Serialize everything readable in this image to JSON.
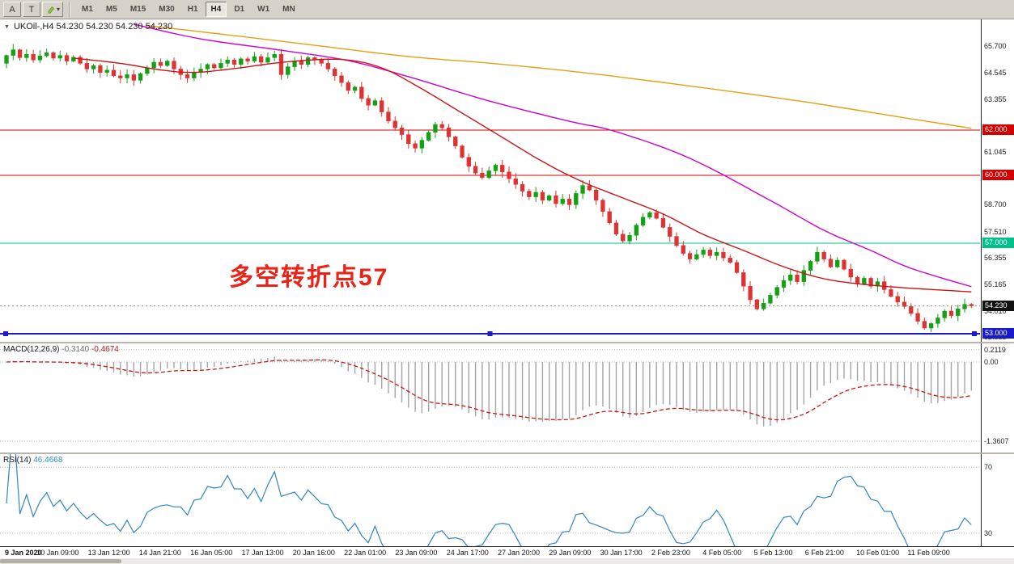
{
  "toolbar": {
    "tool_a": "A",
    "tool_t": "T",
    "timeframes": [
      "M1",
      "M5",
      "M15",
      "M30",
      "H1",
      "H4",
      "D1",
      "W1",
      "MN"
    ],
    "active_timeframe": "H4"
  },
  "chart": {
    "title": "UKOil-,H4 54.230 54.230 54.230 54.230",
    "annotation": "多空转折点57"
  },
  "macd": {
    "label": "MACD(12,26,9)",
    "value_main": "-0.3140",
    "value_signal": "-0.4674"
  },
  "rsi": {
    "label": "RSI(14)",
    "value": "46.4668"
  },
  "chart_data": {
    "type": "candlestick",
    "symbol": "UKOil-",
    "timeframe": "H4",
    "current_price": 54.23,
    "price_axis": {
      "range": [
        52.643,
        66.893
      ],
      "labels": [
        {
          "label": "65.700",
          "price": 65.7
        },
        {
          "label": "64.545",
          "price": 64.545
        },
        {
          "label": "63.355",
          "price": 63.355
        },
        {
          "label": "61.045",
          "price": 61.045
        },
        {
          "label": "58.700",
          "price": 58.7
        },
        {
          "label": "57.510",
          "price": 57.51
        },
        {
          "label": "56.355",
          "price": 56.355
        },
        {
          "label": "55.165",
          "price": 55.165
        },
        {
          "label": "54.010",
          "price": 54.01
        },
        {
          "label": "52.855",
          "price": 52.855
        }
      ],
      "badges": [
        {
          "label": "62.000",
          "price": 62.0,
          "color": "#d40000"
        },
        {
          "label": "60.000",
          "price": 60.0,
          "color": "#d40000"
        },
        {
          "label": "57.000",
          "price": 57.0,
          "color": "#00c08a"
        },
        {
          "label": "54.230",
          "price": 54.23,
          "color": "#111111",
          "current": true
        },
        {
          "label": "53.000",
          "price": 53.0,
          "color": "#1a1acd"
        }
      ]
    },
    "hlines": [
      {
        "price": 62.0,
        "color": "#d40000",
        "width": 1
      },
      {
        "price": 60.0,
        "color": "#d40000",
        "width": 1
      },
      {
        "price": 57.0,
        "color": "#00c08a",
        "width": 1
      },
      {
        "price": 53.0,
        "color": "#1a1acd",
        "width": 2,
        "selected": true
      }
    ],
    "first_open": 64.95,
    "closes": [
      65.3,
      65.55,
      65.2,
      65.35,
      65.1,
      65.28,
      65.42,
      65.18,
      65.3,
      65.05,
      65.22,
      64.95,
      64.7,
      64.85,
      64.55,
      64.65,
      64.4,
      64.3,
      64.45,
      64.2,
      64.5,
      64.75,
      65.0,
      64.85,
      65.05,
      64.7,
      64.45,
      64.3,
      64.55,
      64.7,
      64.9,
      64.75,
      64.95,
      65.1,
      64.9,
      65.15,
      65.05,
      65.25,
      65.0,
      65.2,
      65.35,
      64.45,
      64.8,
      65.05,
      64.9,
      65.2,
      65.1,
      64.95,
      64.7,
      64.4,
      64.1,
      63.75,
      63.9,
      63.4,
      63.1,
      63.3,
      62.8,
      62.4,
      62.1,
      61.8,
      61.4,
      61.2,
      61.55,
      61.9,
      62.25,
      62.1,
      61.7,
      61.3,
      60.8,
      60.4,
      60.1,
      59.9,
      60.2,
      60.45,
      60.15,
      59.85,
      59.6,
      59.3,
      59.05,
      59.25,
      58.9,
      59.1,
      58.75,
      58.95,
      58.7,
      59.2,
      59.55,
      59.35,
      58.9,
      58.4,
      57.9,
      57.4,
      57.1,
      57.35,
      57.8,
      58.15,
      58.35,
      58.1,
      57.7,
      57.3,
      56.9,
      56.55,
      56.3,
      56.5,
      56.7,
      56.45,
      56.6,
      56.35,
      56.15,
      55.7,
      55.1,
      54.5,
      54.1,
      54.35,
      54.7,
      55.05,
      55.35,
      55.6,
      55.3,
      55.8,
      56.2,
      56.6,
      56.3,
      55.95,
      56.25,
      55.85,
      55.5,
      55.2,
      55.45,
      55.1,
      55.3,
      54.95,
      54.65,
      54.4,
      54.2,
      53.9,
      53.55,
      53.25,
      53.45,
      53.7,
      54.0,
      53.8,
      54.1,
      54.3,
      54.23
    ],
    "ma": [
      {
        "name": "slow-orange",
        "color": "#e2a112",
        "points": [
          [
            21,
            66.62
          ],
          [
            35,
            66.14
          ],
          [
            47,
            65.71
          ],
          [
            60,
            65.25
          ],
          [
            72,
            64.96
          ],
          [
            84,
            64.61
          ],
          [
            96,
            64.18
          ],
          [
            108,
            63.71
          ],
          [
            120,
            63.21
          ],
          [
            132,
            62.64
          ],
          [
            144,
            62.08
          ]
        ]
      },
      {
        "name": "mid-magenta",
        "color": "#cc00cc",
        "points": [
          [
            19,
            66.68
          ],
          [
            29,
            66.03
          ],
          [
            41,
            65.53
          ],
          [
            51,
            65.07
          ],
          [
            60,
            64.36
          ],
          [
            72,
            63.29
          ],
          [
            84,
            62.39
          ],
          [
            91,
            61.93
          ],
          [
            102,
            60.75
          ],
          [
            114,
            58.89
          ],
          [
            122,
            57.57
          ],
          [
            129,
            56.68
          ],
          [
            135,
            55.89
          ],
          [
            144,
            55.08
          ]
        ]
      },
      {
        "name": "fast-red",
        "color": "#cc1414",
        "points": [
          [
            10,
            65.18
          ],
          [
            17,
            64.95
          ],
          [
            23,
            64.66
          ],
          [
            28,
            64.55
          ],
          [
            34,
            64.72
          ],
          [
            42,
            65.02
          ],
          [
            50,
            65.12
          ],
          [
            56,
            64.75
          ],
          [
            62,
            63.82
          ],
          [
            68,
            62.75
          ],
          [
            74,
            61.68
          ],
          [
            80,
            60.61
          ],
          [
            86,
            59.71
          ],
          [
            92,
            59.0
          ],
          [
            98,
            58.29
          ],
          [
            104,
            57.39
          ],
          [
            110,
            56.68
          ],
          [
            116,
            55.96
          ],
          [
            122,
            55.43
          ],
          [
            128,
            55.18
          ],
          [
            134,
            55.03
          ],
          [
            144,
            54.85
          ]
        ]
      }
    ],
    "macd_panel": {
      "range": [
        -1.556,
        0.319
      ],
      "levels": [
        {
          "label": "0.2119",
          "value": 0.2119
        },
        {
          "label": "0.00",
          "value": 0
        },
        {
          "label": "-1.3607",
          "value": -1.3607
        }
      ]
    },
    "rsi_panel": {
      "range": [
        22,
        78
      ],
      "levels": [
        {
          "label": "70",
          "value": 70
        },
        {
          "label": "30",
          "value": 30
        }
      ]
    },
    "time_labels": [
      "9 Jan 2020",
      "10 Jan 09:00",
      "13 Jan 12:00",
      "14 Jan 21:00",
      "16 Jan 05:00",
      "17 Jan 13:00",
      "20 Jan 16:00",
      "22 Jan 01:00",
      "23 Jan 09:00",
      "24 Jan 17:00",
      "27 Jan 20:00",
      "29 Jan 09:00",
      "30 Jan 17:00",
      "2 Feb 23:00",
      "4 Feb 05:00",
      "5 Feb 13:00",
      "6 Feb 21:00",
      "10 Feb 01:00",
      "11 Feb 09:00"
    ],
    "colors": {
      "bull": "#13a113",
      "bear": "#dd3333",
      "macd_hist": "#a4a4a4",
      "macd_signal": "#cc1414",
      "rsi_line": "#2f86c4",
      "annotation": "#ea2318",
      "current_line": "#888888"
    }
  }
}
